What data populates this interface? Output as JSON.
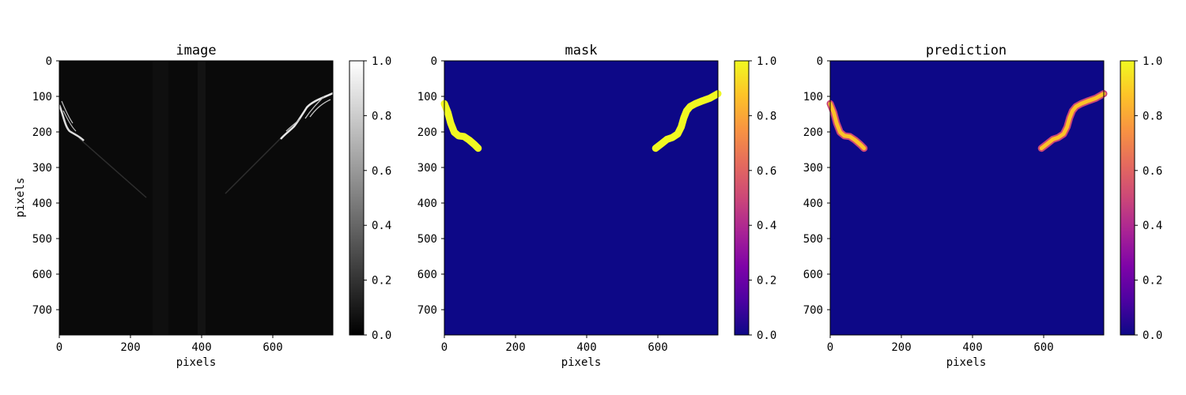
{
  "chart_data": [
    {
      "type": "heatmap",
      "title": "image",
      "xlabel": "pixels",
      "ylabel": "pixels",
      "xlim": [
        0,
        768
      ],
      "ylim": [
        768,
        0
      ],
      "xticks": [
        "0",
        "200",
        "400",
        "600"
      ],
      "yticks": [
        "0",
        "100",
        "200",
        "300",
        "400",
        "500",
        "600",
        "700"
      ],
      "colormap": "gray",
      "colorbar": {
        "range": [
          0,
          1
        ],
        "ticks": [
          "0.0",
          "0.2",
          "0.4",
          "0.6",
          "0.8",
          "1.0"
        ]
      },
      "background_color": "#0a0a0a"
    },
    {
      "type": "heatmap",
      "title": "mask",
      "xlabel": "pixels",
      "ylabel": "",
      "xlim": [
        0,
        768
      ],
      "ylim": [
        768,
        0
      ],
      "xticks": [
        "0",
        "200",
        "400",
        "600"
      ],
      "yticks": [
        "0",
        "100",
        "200",
        "300",
        "400",
        "500",
        "600",
        "700"
      ],
      "colormap": "plasma",
      "colorbar": {
        "range": [
          0,
          1
        ],
        "ticks": [
          "0.0",
          "0.2",
          "0.4",
          "0.6",
          "0.8",
          "1.0"
        ]
      },
      "background_color": "#0d0887",
      "curves": [
        {
          "value": 1.0,
          "points": [
            [
              0,
              120
            ],
            [
              10,
              145
            ],
            [
              18,
              175
            ],
            [
              28,
              200
            ],
            [
              40,
              210
            ],
            [
              55,
              212
            ],
            [
              70,
              222
            ],
            [
              85,
              235
            ],
            [
              95,
              245
            ]
          ]
        },
        {
          "value": 1.0,
          "points": [
            [
              593,
              245
            ],
            [
              610,
              232
            ],
            [
              625,
              220
            ],
            [
              640,
              215
            ],
            [
              655,
              205
            ],
            [
              665,
              185
            ],
            [
              672,
              160
            ],
            [
              680,
              140
            ],
            [
              690,
              128
            ],
            [
              705,
              120
            ],
            [
              725,
              112
            ],
            [
              745,
              105
            ],
            [
              768,
              92
            ]
          ]
        }
      ]
    },
    {
      "type": "heatmap",
      "title": "prediction",
      "xlabel": "pixels",
      "ylabel": "",
      "xlim": [
        0,
        768
      ],
      "ylim": [
        768,
        0
      ],
      "xticks": [
        "0",
        "200",
        "400",
        "600"
      ],
      "yticks": [
        "0",
        "100",
        "200",
        "300",
        "400",
        "500",
        "600",
        "700"
      ],
      "colormap": "plasma",
      "colorbar": {
        "range": [
          0,
          1
        ],
        "ticks": [
          "0.0",
          "0.2",
          "0.4",
          "0.6",
          "0.8",
          "1.0"
        ]
      },
      "background_color": "#0d0887",
      "curves": [
        {
          "value": 0.9,
          "points": [
            [
              0,
              120
            ],
            [
              10,
              145
            ],
            [
              18,
              175
            ],
            [
              28,
              200
            ],
            [
              40,
              210
            ],
            [
              55,
              212
            ],
            [
              70,
              222
            ],
            [
              85,
              235
            ],
            [
              95,
              245
            ]
          ]
        },
        {
          "value": 0.9,
          "points": [
            [
              593,
              245
            ],
            [
              610,
              232
            ],
            [
              625,
              220
            ],
            [
              640,
              215
            ],
            [
              655,
              205
            ],
            [
              665,
              185
            ],
            [
              672,
              160
            ],
            [
              680,
              140
            ],
            [
              690,
              128
            ],
            [
              705,
              120
            ],
            [
              725,
              112
            ],
            [
              745,
              105
            ],
            [
              768,
              92
            ]
          ]
        }
      ]
    }
  ]
}
